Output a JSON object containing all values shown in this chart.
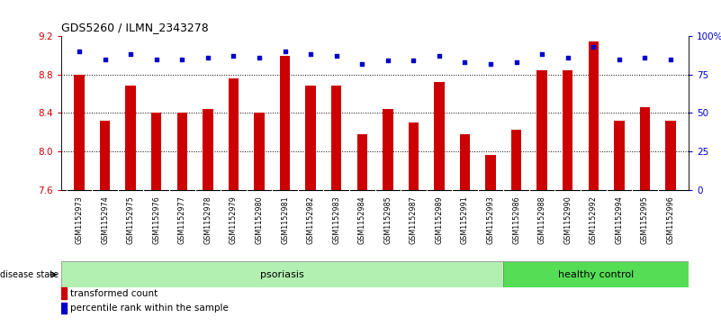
{
  "title": "GDS5260 / ILMN_2343278",
  "categories": [
    "GSM1152973",
    "GSM1152974",
    "GSM1152975",
    "GSM1152976",
    "GSM1152977",
    "GSM1152978",
    "GSM1152979",
    "GSM1152980",
    "GSM1152981",
    "GSM1152982",
    "GSM1152983",
    "GSM1152984",
    "GSM1152985",
    "GSM1152987",
    "GSM1152989",
    "GSM1152991",
    "GSM1152993",
    "GSM1152986",
    "GSM1152988",
    "GSM1152990",
    "GSM1152992",
    "GSM1152994",
    "GSM1152995",
    "GSM1152996"
  ],
  "bar_values": [
    8.8,
    8.32,
    8.68,
    8.4,
    8.4,
    8.44,
    8.76,
    8.4,
    8.99,
    8.68,
    8.68,
    8.18,
    8.44,
    8.3,
    8.72,
    8.18,
    7.96,
    8.22,
    8.84,
    8.84,
    9.14,
    8.32,
    8.46,
    8.32
  ],
  "percentile_values": [
    90,
    85,
    88,
    85,
    85,
    86,
    87,
    86,
    90,
    88,
    87,
    82,
    84,
    84,
    87,
    83,
    82,
    83,
    88,
    86,
    93,
    85,
    86,
    85
  ],
  "ylim_left": [
    7.6,
    9.2
  ],
  "ylim_right": [
    0,
    100
  ],
  "yticks_left": [
    7.6,
    8.0,
    8.4,
    8.8,
    9.2
  ],
  "yticks_right": [
    0,
    25,
    50,
    75,
    100
  ],
  "ytick_labels_right": [
    "0",
    "25",
    "50",
    "75",
    "100%"
  ],
  "bar_color": "#cc0000",
  "dot_color": "#0000cc",
  "psoriasis_count": 17,
  "healthy_count": 7,
  "psoriasis_label": "psoriasis",
  "healthy_label": "healthy control",
  "disease_state_label": "disease state",
  "legend_bar_label": "transformed count",
  "legend_dot_label": "percentile rank within the sample",
  "group_color_psoriasis": "#b2f0b2",
  "group_color_healthy": "#55dd55",
  "background_color": "#ffffff",
  "tick_area_color": "#cccccc"
}
